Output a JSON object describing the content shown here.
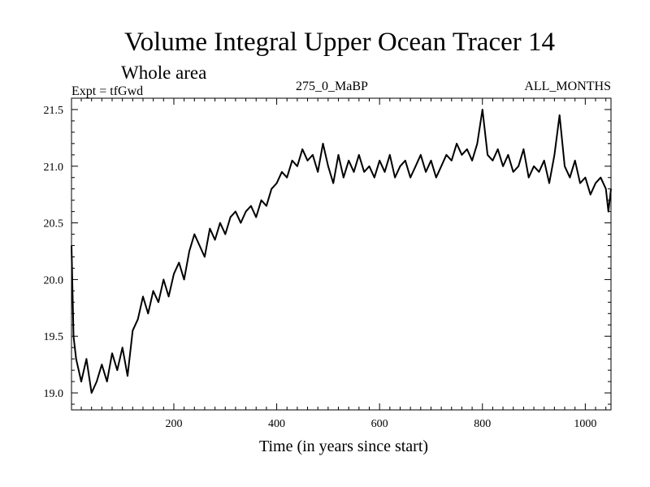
{
  "chart_data": {
    "type": "line",
    "title": "Volume Integral Upper Ocean Tracer 14",
    "subtitle": "Whole area",
    "experiment_label": "Expt = tfGwd",
    "period_label": "275_0_MaBP",
    "season_label": "ALL_MONTHS",
    "xlabel": "Time (in years since start)",
    "ylabel": "",
    "xlim": [
      1,
      1050
    ],
    "ylim": [
      18.85,
      21.6
    ],
    "x_ticks": [
      200,
      400,
      600,
      800,
      1000
    ],
    "x_tick_labels": [
      "200",
      "400",
      "600",
      "800",
      "1000"
    ],
    "y_ticks": [
      19.0,
      19.5,
      20.0,
      20.5,
      21.0,
      21.5
    ],
    "y_tick_labels": [
      "19.0",
      "19.5",
      "20.0",
      "20.5",
      "21.0",
      "21.5"
    ],
    "grid": false,
    "series": [
      {
        "name": "tfGwd",
        "color": "#000000",
        "x": [
          1,
          5,
          10,
          20,
          30,
          40,
          50,
          60,
          70,
          80,
          90,
          100,
          110,
          120,
          130,
          140,
          150,
          160,
          170,
          180,
          190,
          200,
          210,
          220,
          230,
          240,
          250,
          260,
          270,
          280,
          290,
          300,
          310,
          320,
          330,
          340,
          350,
          360,
          370,
          380,
          390,
          400,
          410,
          420,
          430,
          440,
          450,
          460,
          470,
          480,
          490,
          500,
          510,
          520,
          530,
          540,
          550,
          560,
          570,
          580,
          590,
          600,
          610,
          620,
          630,
          640,
          650,
          660,
          670,
          680,
          690,
          700,
          710,
          720,
          730,
          740,
          750,
          760,
          770,
          780,
          790,
          800,
          810,
          820,
          830,
          840,
          850,
          860,
          870,
          880,
          890,
          900,
          910,
          920,
          930,
          940,
          950,
          960,
          970,
          980,
          990,
          1000,
          1010,
          1020,
          1030,
          1040,
          1045,
          1050
        ],
        "values": [
          20.3,
          19.5,
          19.3,
          19.1,
          19.3,
          19.0,
          19.1,
          19.25,
          19.1,
          19.35,
          19.2,
          19.4,
          19.15,
          19.55,
          19.65,
          19.85,
          19.7,
          19.9,
          19.8,
          20.0,
          19.85,
          20.05,
          20.15,
          20.0,
          20.25,
          20.4,
          20.3,
          20.2,
          20.45,
          20.35,
          20.5,
          20.4,
          20.55,
          20.6,
          20.5,
          20.6,
          20.65,
          20.55,
          20.7,
          20.65,
          20.8,
          20.85,
          20.95,
          20.9,
          21.05,
          21.0,
          21.15,
          21.05,
          21.1,
          20.95,
          21.2,
          21.0,
          20.85,
          21.1,
          20.9,
          21.05,
          20.95,
          21.1,
          20.95,
          21.0,
          20.9,
          21.05,
          20.95,
          21.1,
          20.9,
          21.0,
          21.05,
          20.9,
          21.0,
          21.1,
          20.95,
          21.05,
          20.9,
          21.0,
          21.1,
          21.05,
          21.2,
          21.1,
          21.15,
          21.05,
          21.2,
          21.5,
          21.1,
          21.05,
          21.15,
          21.0,
          21.1,
          20.95,
          21.0,
          21.15,
          20.9,
          21.0,
          20.95,
          21.05,
          20.85,
          21.1,
          21.45,
          21.0,
          20.9,
          21.05,
          20.85,
          20.9,
          20.75,
          20.85,
          20.9,
          20.8,
          20.6,
          20.8
        ]
      }
    ]
  }
}
